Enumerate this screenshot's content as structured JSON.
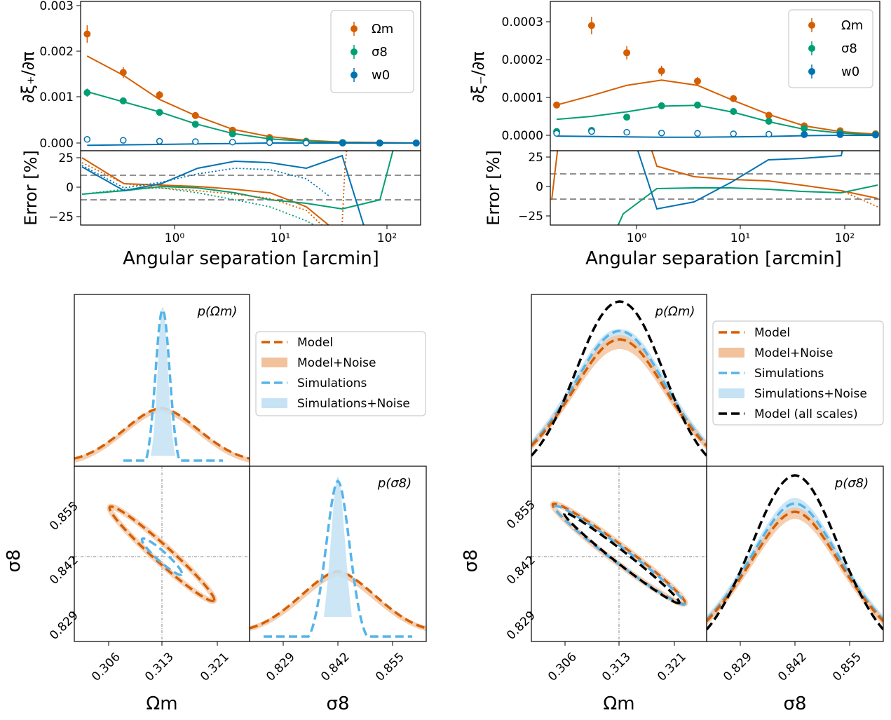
{
  "colors": {
    "omega_m": "#d55e00",
    "sigma_8": "#009e73",
    "w0": "#0072b2",
    "model": "#d55e00",
    "model_noise": "#f2c29c",
    "simulations": "#56b4e9",
    "sim_noise": "#c6e3f5",
    "all_scales": "#000000",
    "ref_dash": "#808080"
  },
  "top_left": {
    "ylabel": "∂ξ₊/∂π",
    "err_ylabel": "Error [%]",
    "xlabel": "Angular separation [arcmin]",
    "yticks": [
      "0.000",
      "0.001",
      "0.002",
      "0.003"
    ],
    "err_yticks": [
      "25",
      "0",
      "−25"
    ],
    "xticks": [
      "10⁰",
      "10¹",
      "10²"
    ],
    "legend": [
      "Ωm",
      "σ8",
      "w0"
    ]
  },
  "top_right": {
    "ylabel": "∂ξ₋/∂π",
    "err_ylabel": "Error [%]",
    "xlabel": "Angular separation [arcmin]",
    "yticks": [
      "0.0000",
      "0.0001",
      "0.0002",
      "0.0003"
    ],
    "err_yticks": [
      "25",
      "0",
      "−25"
    ],
    "xticks": [
      "10⁰",
      "10¹",
      "10²"
    ],
    "legend": [
      "Ωm",
      "σ8",
      "w0"
    ]
  },
  "corner_left": {
    "p_om": "p(Ωm)",
    "p_s8": "p(σ8)",
    "xlabel_om": "Ωm",
    "xlabel_s8": "σ8",
    "ylabel_s8": "σ8",
    "om_ticks": [
      "0.306",
      "0.313",
      "0.321"
    ],
    "s8_ticks": [
      "0.829",
      "0.842",
      "0.855"
    ],
    "legend": [
      "Model",
      "Model+Noise",
      "Simulations",
      "Simulations+Noise"
    ]
  },
  "corner_right": {
    "p_om": "p(Ωm)",
    "p_s8": "p(σ8)",
    "xlabel_om": "Ωm",
    "xlabel_s8": "σ8",
    "ylabel_s8": "σ8",
    "om_ticks": [
      "0.306",
      "0.313",
      "0.321"
    ],
    "s8_ticks": [
      "0.829",
      "0.842",
      "0.855"
    ],
    "legend": [
      "Model",
      "Model+Noise",
      "Simulations",
      "Simulations+Noise",
      "Model (all scales)"
    ]
  },
  "chart_data": [
    {
      "type": "line",
      "xscale": "log",
      "xlim": [
        0.13,
        220
      ],
      "ylim": [
        -0.0001,
        0.003
      ],
      "x": [
        0.15,
        0.33,
        0.73,
        1.6,
        3.6,
        8.1,
        18,
        40,
        90,
        200
      ],
      "series": [
        {
          "name": "Ωm",
          "points": [
            0.00238,
            0.00154,
            0.00105,
            0.0006,
            0.00028,
            0.00012,
            4e-05,
            1e-05,
            0.0,
            0.0
          ],
          "model": [
            0.0019,
            0.00148,
            0.00095,
            0.0006,
            0.0003,
            0.00014,
            6e-05,
            2e-05,
            1e-05,
            0.0
          ]
        },
        {
          "name": "σ8",
          "points": [
            0.0011,
            0.00092,
            0.00067,
            0.00041,
            0.0002,
            8e-05,
            3e-05,
            1e-05,
            0.0,
            0.0
          ],
          "model": [
            0.00112,
            0.0009,
            0.00068,
            0.00042,
            0.00021,
            9e-05,
            4e-05,
            1e-05,
            0.0,
            0.0
          ]
        },
        {
          "name": "w0",
          "points": [
            8e-05,
            6e-05,
            4e-05,
            3e-05,
            2e-05,
            1e-05,
            0.0,
            0.0,
            0.0,
            0.0
          ],
          "model": [
            -5e-05,
            -4e-05,
            -3e-05,
            -2e-05,
            -1e-05,
            0.0,
            0.0,
            0.0,
            0.0,
            0.0
          ]
        }
      ]
    },
    {
      "type": "line",
      "xscale": "log",
      "xlim": [
        0.13,
        220
      ],
      "ylim": [
        -3e-05,
        0.00034
      ],
      "x": [
        0.15,
        0.33,
        0.73,
        1.6,
        3.6,
        8.1,
        18,
        40,
        90,
        200
      ],
      "series": [
        {
          "name": "Ωm",
          "points": [
            8e-05,
            0.00029,
            0.000218,
            0.00017,
            0.000143,
            9.7e-05,
            5.3e-05,
            2.5e-05,
            1.2e-05,
            4e-06
          ],
          "model": [
            8e-05,
            0.000105,
            0.000132,
            0.000146,
            0.000132,
            9.2e-05,
            5.5e-05,
            2.5e-05,
            1e-05,
            3e-06
          ]
        },
        {
          "name": "σ8",
          "points": [
            1e-05,
            1.3e-05,
            4.8e-05,
            7.8e-05,
            8e-05,
            6.3e-05,
            3.7e-05,
            1.8e-05,
            7e-06,
            2e-06
          ],
          "model": [
            4.2e-05,
            5e-05,
            6.2e-05,
            7.7e-05,
            7.9e-05,
            6.1e-05,
            3.6e-05,
            1.6e-05,
            6e-06,
            1e-06
          ]
        },
        {
          "name": "w0",
          "points": [
            5e-06,
            1e-05,
            8e-06,
            6e-06,
            5e-06,
            4e-06,
            3e-06,
            2e-06,
            2e-06,
            1e-06
          ],
          "model": [
            -2e-06,
            -3e-06,
            -4e-06,
            -5e-06,
            -5e-06,
            -4e-06,
            -3e-06,
            -1e-06,
            0.0,
            0.0
          ]
        }
      ]
    }
  ]
}
